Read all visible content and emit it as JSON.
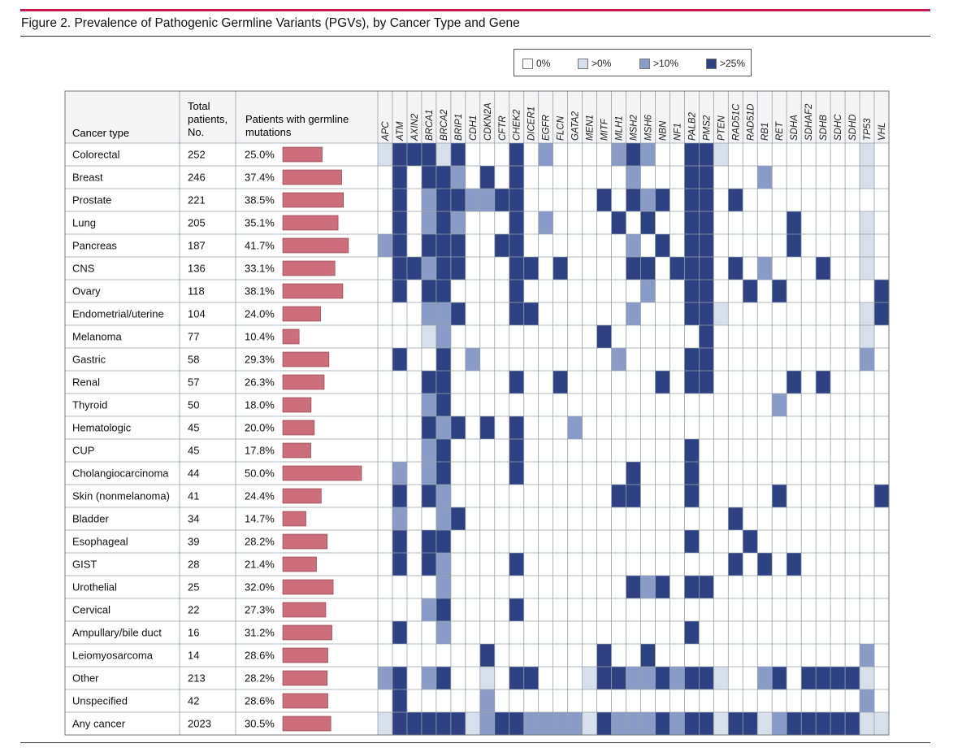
{
  "figure": {
    "title": "Figure 2. Prevalence of Pathogenic Germline Variants (PGVs), by Cancer Type and Gene"
  },
  "colors": {
    "rule": "#c8194f",
    "bar": "#cc6e7b",
    "bar_stroke": "#8e3a48",
    "grid": "#9aa0a8",
    "header_fill": "#f4f4f4",
    "levels": [
      "#ffffff",
      "#d6dfea",
      "#8a9bc7",
      "#2e4283"
    ]
  },
  "legend": {
    "items": [
      {
        "label": "0%",
        "level": 0
      },
      {
        "label": ">0%",
        "level": 1
      },
      {
        "label": ">10%",
        "level": 2
      },
      {
        "label": ">25%",
        "level": 3
      }
    ]
  },
  "table": {
    "headers": {
      "cancer_type": "Cancer type",
      "total_line1": "Total",
      "total_line2": "patients,",
      "total_line3": "No.",
      "germline_line1": "Patients with germline",
      "germline_line2": "mutations"
    }
  },
  "chart_data": {
    "type": "heatmap",
    "title": "Figure 2. Prevalence of Pathogenic Germline Variants (PGVs), by Cancer Type and Gene",
    "level_legend": [
      "0%",
      ">0%",
      ">10%",
      ">25%"
    ],
    "columns": [
      "APC",
      "ATM",
      "AXIN2",
      "BRCA1",
      "BRCA2",
      "BRIP1",
      "CDH1",
      "CDKN2A",
      "CFTR",
      "CHEK2",
      "DICER1",
      "EGFR",
      "FLCN",
      "GATA2",
      "MEN1",
      "MITF",
      "MLH1",
      "MSH2",
      "MSH6",
      "NBN",
      "NF1",
      "PALB2",
      "PMS2",
      "PTEN",
      "RAD51C",
      "RAD51D",
      "RB1",
      "RET",
      "SDHA",
      "SDHAF2",
      "SDHB",
      "SDHC",
      "SDHD",
      "TP53",
      "VHL"
    ],
    "rows": [
      {
        "cancer": "Colorectal",
        "total": "252",
        "pct_label": "25.0%",
        "pct": 25.0,
        "levels": [
          1,
          3,
          3,
          3,
          1,
          3,
          0,
          0,
          0,
          3,
          0,
          2,
          0,
          0,
          0,
          0,
          2,
          3,
          2,
          0,
          0,
          3,
          3,
          1,
          0,
          0,
          0,
          0,
          0,
          0,
          0,
          0,
          0,
          1,
          0
        ]
      },
      {
        "cancer": "Breast",
        "total": "246",
        "pct_label": "37.4%",
        "pct": 37.4,
        "levels": [
          0,
          3,
          0,
          3,
          3,
          2,
          0,
          3,
          0,
          3,
          0,
          0,
          0,
          0,
          0,
          0,
          0,
          2,
          0,
          0,
          0,
          3,
          3,
          0,
          0,
          0,
          2,
          0,
          0,
          0,
          0,
          0,
          0,
          1,
          0
        ]
      },
      {
        "cancer": "Prostate",
        "total": "221",
        "pct_label": "38.5%",
        "pct": 38.5,
        "levels": [
          0,
          3,
          0,
          2,
          3,
          3,
          2,
          2,
          3,
          3,
          0,
          0,
          0,
          0,
          0,
          3,
          0,
          3,
          2,
          3,
          0,
          3,
          3,
          0,
          3,
          0,
          0,
          0,
          0,
          0,
          0,
          0,
          0,
          0,
          0
        ]
      },
      {
        "cancer": "Lung",
        "total": "205",
        "pct_label": "35.1%",
        "pct": 35.1,
        "levels": [
          0,
          3,
          0,
          2,
          3,
          2,
          0,
          0,
          0,
          3,
          0,
          2,
          0,
          0,
          0,
          0,
          3,
          0,
          3,
          0,
          0,
          3,
          3,
          0,
          0,
          0,
          0,
          0,
          3,
          0,
          0,
          0,
          0,
          1,
          0
        ]
      },
      {
        "cancer": "Pancreas",
        "total": "187",
        "pct_label": "41.7%",
        "pct": 41.7,
        "levels": [
          2,
          3,
          0,
          3,
          3,
          3,
          0,
          0,
          3,
          3,
          0,
          0,
          0,
          0,
          0,
          0,
          0,
          2,
          0,
          3,
          0,
          3,
          3,
          0,
          0,
          0,
          0,
          0,
          3,
          0,
          0,
          0,
          0,
          1,
          0
        ]
      },
      {
        "cancer": "CNS",
        "total": "136",
        "pct_label": "33.1%",
        "pct": 33.1,
        "levels": [
          0,
          3,
          3,
          2,
          3,
          3,
          0,
          0,
          0,
          3,
          3,
          0,
          3,
          0,
          0,
          0,
          0,
          3,
          3,
          0,
          3,
          3,
          3,
          0,
          3,
          0,
          2,
          0,
          0,
          0,
          3,
          0,
          0,
          1,
          0
        ]
      },
      {
        "cancer": "Ovary",
        "total": "118",
        "pct_label": "38.1%",
        "pct": 38.1,
        "levels": [
          0,
          3,
          0,
          3,
          3,
          0,
          0,
          0,
          0,
          3,
          0,
          0,
          0,
          0,
          0,
          0,
          0,
          0,
          2,
          0,
          0,
          3,
          3,
          0,
          0,
          3,
          0,
          3,
          0,
          0,
          0,
          0,
          0,
          0,
          3
        ]
      },
      {
        "cancer": "Endometrial/uterine",
        "total": "104",
        "pct_label": "24.0%",
        "pct": 24.0,
        "levels": [
          0,
          0,
          0,
          2,
          2,
          3,
          0,
          0,
          0,
          3,
          3,
          0,
          0,
          0,
          0,
          0,
          0,
          2,
          0,
          0,
          0,
          3,
          3,
          1,
          0,
          0,
          0,
          0,
          0,
          0,
          0,
          0,
          0,
          1,
          3
        ]
      },
      {
        "cancer": "Melanoma",
        "total": "77",
        "pct_label": "10.4%",
        "pct": 10.4,
        "levels": [
          0,
          0,
          0,
          1,
          2,
          0,
          0,
          0,
          0,
          0,
          0,
          0,
          0,
          0,
          0,
          3,
          0,
          0,
          0,
          0,
          0,
          0,
          3,
          0,
          0,
          0,
          0,
          0,
          0,
          0,
          0,
          0,
          0,
          1,
          0
        ]
      },
      {
        "cancer": "Gastric",
        "total": "58",
        "pct_label": "29.3%",
        "pct": 29.3,
        "levels": [
          0,
          3,
          0,
          0,
          3,
          0,
          2,
          0,
          0,
          0,
          0,
          0,
          0,
          0,
          0,
          0,
          2,
          0,
          0,
          0,
          0,
          3,
          3,
          0,
          0,
          0,
          0,
          0,
          0,
          0,
          0,
          0,
          0,
          2,
          0
        ]
      },
      {
        "cancer": "Renal",
        "total": "57",
        "pct_label": "26.3%",
        "pct": 26.3,
        "levels": [
          0,
          0,
          0,
          3,
          3,
          0,
          0,
          0,
          0,
          3,
          0,
          0,
          3,
          0,
          0,
          0,
          0,
          0,
          0,
          3,
          0,
          3,
          3,
          0,
          0,
          0,
          0,
          0,
          3,
          0,
          3,
          0,
          0,
          0,
          0
        ]
      },
      {
        "cancer": "Thyroid",
        "total": "50",
        "pct_label": "18.0%",
        "pct": 18.0,
        "levels": [
          0,
          0,
          0,
          2,
          3,
          0,
          0,
          0,
          0,
          0,
          0,
          0,
          0,
          0,
          0,
          0,
          0,
          0,
          0,
          0,
          0,
          0,
          0,
          0,
          0,
          0,
          0,
          2,
          0,
          0,
          0,
          0,
          0,
          0,
          0
        ]
      },
      {
        "cancer": "Hematologic",
        "total": "45",
        "pct_label": "20.0%",
        "pct": 20.0,
        "levels": [
          0,
          0,
          0,
          3,
          2,
          3,
          0,
          3,
          0,
          3,
          0,
          0,
          0,
          2,
          0,
          0,
          0,
          0,
          0,
          0,
          0,
          0,
          0,
          0,
          0,
          0,
          0,
          0,
          0,
          0,
          0,
          0,
          0,
          0,
          0
        ]
      },
      {
        "cancer": "CUP",
        "total": "45",
        "pct_label": "17.8%",
        "pct": 17.8,
        "levels": [
          0,
          0,
          0,
          2,
          3,
          0,
          0,
          0,
          0,
          3,
          0,
          0,
          0,
          0,
          0,
          0,
          0,
          0,
          0,
          0,
          0,
          3,
          0,
          0,
          0,
          0,
          0,
          0,
          0,
          0,
          0,
          0,
          0,
          0,
          0
        ]
      },
      {
        "cancer": "Cholangiocarcinoma",
        "total": "44",
        "pct_label": "50.0%",
        "pct": 50.0,
        "levels": [
          0,
          2,
          0,
          2,
          3,
          0,
          0,
          0,
          0,
          3,
          0,
          0,
          0,
          0,
          0,
          0,
          0,
          3,
          0,
          0,
          0,
          3,
          0,
          0,
          0,
          0,
          0,
          0,
          0,
          0,
          0,
          0,
          0,
          0,
          0
        ]
      },
      {
        "cancer": "Skin (nonmelanoma)",
        "total": "41",
        "pct_label": "24.4%",
        "pct": 24.4,
        "levels": [
          0,
          3,
          0,
          3,
          2,
          0,
          0,
          0,
          0,
          0,
          0,
          0,
          0,
          0,
          0,
          0,
          3,
          3,
          0,
          0,
          0,
          3,
          0,
          0,
          0,
          0,
          0,
          3,
          0,
          0,
          0,
          0,
          0,
          0,
          3
        ]
      },
      {
        "cancer": "Bladder",
        "total": "34",
        "pct_label": "14.7%",
        "pct": 14.7,
        "levels": [
          0,
          2,
          0,
          0,
          2,
          3,
          0,
          0,
          0,
          0,
          0,
          0,
          0,
          0,
          0,
          0,
          0,
          0,
          0,
          0,
          0,
          0,
          0,
          0,
          3,
          0,
          0,
          0,
          0,
          0,
          0,
          0,
          0,
          0,
          0
        ]
      },
      {
        "cancer": "Esophageal",
        "total": "39",
        "pct_label": "28.2%",
        "pct": 28.2,
        "levels": [
          0,
          3,
          0,
          3,
          3,
          0,
          0,
          0,
          0,
          0,
          0,
          0,
          0,
          0,
          0,
          0,
          0,
          0,
          0,
          0,
          0,
          3,
          0,
          0,
          0,
          3,
          0,
          0,
          0,
          0,
          0,
          0,
          0,
          0,
          0
        ]
      },
      {
        "cancer": "GIST",
        "total": "28",
        "pct_label": "21.4%",
        "pct": 21.4,
        "levels": [
          0,
          3,
          0,
          3,
          2,
          0,
          0,
          0,
          0,
          3,
          0,
          0,
          0,
          0,
          0,
          0,
          0,
          0,
          0,
          0,
          0,
          0,
          0,
          0,
          3,
          0,
          3,
          0,
          3,
          0,
          0,
          0,
          0,
          0,
          0
        ]
      },
      {
        "cancer": "Urothelial",
        "total": "25",
        "pct_label": "32.0%",
        "pct": 32.0,
        "levels": [
          0,
          0,
          0,
          0,
          2,
          0,
          0,
          0,
          0,
          0,
          0,
          0,
          0,
          0,
          0,
          0,
          0,
          3,
          2,
          3,
          0,
          3,
          3,
          0,
          0,
          0,
          0,
          0,
          0,
          0,
          0,
          0,
          0,
          0,
          0
        ]
      },
      {
        "cancer": "Cervical",
        "total": "22",
        "pct_label": "27.3%",
        "pct": 27.3,
        "levels": [
          0,
          0,
          0,
          2,
          3,
          0,
          0,
          0,
          0,
          3,
          0,
          0,
          0,
          0,
          0,
          0,
          0,
          0,
          0,
          0,
          0,
          0,
          0,
          0,
          0,
          0,
          0,
          0,
          0,
          0,
          0,
          0,
          0,
          0,
          0
        ]
      },
      {
        "cancer": "Ampullary/bile duct",
        "total": "16",
        "pct_label": "31.2%",
        "pct": 31.2,
        "levels": [
          0,
          3,
          0,
          0,
          2,
          0,
          0,
          0,
          0,
          0,
          0,
          0,
          0,
          0,
          0,
          0,
          0,
          0,
          0,
          0,
          0,
          3,
          0,
          0,
          0,
          0,
          0,
          0,
          0,
          0,
          0,
          0,
          0,
          0,
          0
        ]
      },
      {
        "cancer": "Leiomyosarcoma",
        "total": "14",
        "pct_label": "28.6%",
        "pct": 28.6,
        "levels": [
          0,
          0,
          0,
          0,
          0,
          0,
          0,
          3,
          0,
          0,
          0,
          0,
          0,
          0,
          0,
          3,
          0,
          0,
          3,
          0,
          0,
          0,
          0,
          0,
          0,
          0,
          0,
          0,
          0,
          0,
          0,
          0,
          0,
          2,
          0
        ]
      },
      {
        "cancer": "Other",
        "total": "213",
        "pct_label": "28.2%",
        "pct": 28.2,
        "levels": [
          2,
          3,
          0,
          2,
          3,
          0,
          0,
          1,
          0,
          3,
          3,
          0,
          0,
          0,
          1,
          3,
          3,
          2,
          2,
          3,
          2,
          3,
          3,
          1,
          0,
          0,
          2,
          3,
          0,
          3,
          3,
          3,
          3,
          1,
          0
        ]
      },
      {
        "cancer": "Unspecified",
        "total": "42",
        "pct_label": "28.6%",
        "pct": 28.6,
        "levels": [
          0,
          3,
          0,
          0,
          0,
          0,
          0,
          2,
          0,
          0,
          0,
          0,
          0,
          0,
          0,
          0,
          0,
          0,
          0,
          0,
          0,
          0,
          0,
          0,
          0,
          0,
          0,
          0,
          0,
          0,
          0,
          0,
          0,
          2,
          0
        ]
      },
      {
        "cancer": "Any cancer",
        "total": "2023",
        "pct_label": "30.5%",
        "pct": 30.5,
        "levels": [
          1,
          3,
          3,
          3,
          3,
          3,
          1,
          2,
          3,
          3,
          2,
          2,
          2,
          2,
          1,
          3,
          2,
          2,
          2,
          3,
          2,
          3,
          3,
          1,
          3,
          3,
          1,
          2,
          3,
          3,
          3,
          3,
          3,
          1,
          1
        ]
      }
    ]
  }
}
